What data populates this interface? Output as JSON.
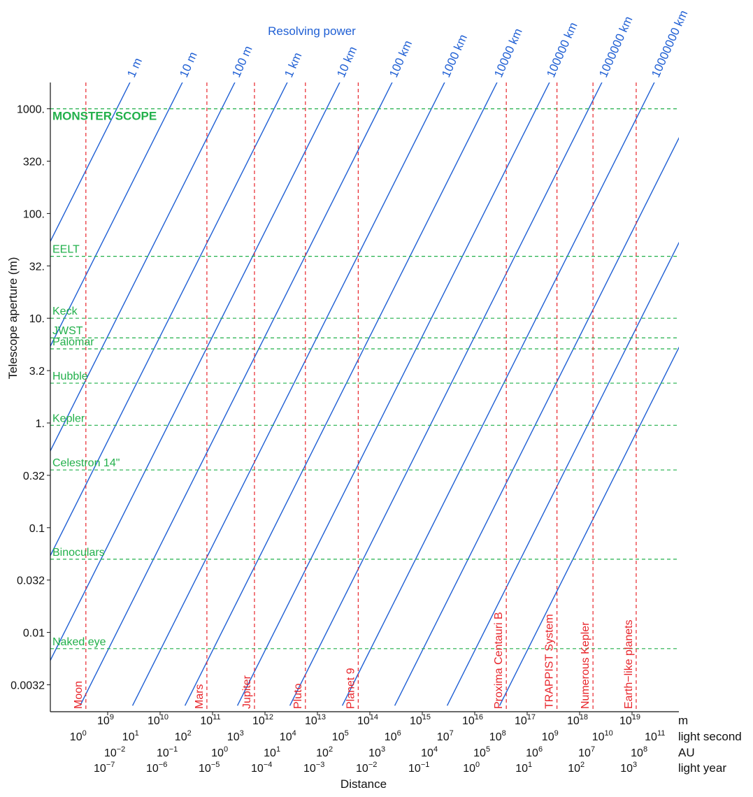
{
  "chart_data": {
    "type": "line",
    "title": "Resolving power",
    "xlabel": "Distance",
    "ylabel": "Telescope aperture (m)",
    "x_scale": "log",
    "y_scale": "log",
    "xlim_m": [
      300000000.0,
      1e+20
    ],
    "ylim_m": [
      0.002,
      2000
    ],
    "y_ticks": [
      {
        "value": 1000,
        "label": "1000."
      },
      {
        "value": 316.2,
        "label": "320."
      },
      {
        "value": 100,
        "label": "100."
      },
      {
        "value": 31.62,
        "label": "32."
      },
      {
        "value": 10,
        "label": "10."
      },
      {
        "value": 3.162,
        "label": "3.2"
      },
      {
        "value": 1,
        "label": "1."
      },
      {
        "value": 0.3162,
        "label": "0.32"
      },
      {
        "value": 0.1,
        "label": "0.1"
      },
      {
        "value": 0.03162,
        "label": "0.032"
      },
      {
        "value": 0.01,
        "label": "0.01"
      },
      {
        "value": 0.003162,
        "label": "0.0032"
      }
    ],
    "x_axis_rows": [
      {
        "name": "m",
        "ticks": [
          {
            "value_m": 1000000000.0,
            "base": "10",
            "exp": "9"
          },
          {
            "value_m": 10000000000.0,
            "base": "10",
            "exp": "10"
          },
          {
            "value_m": 100000000000.0,
            "base": "10",
            "exp": "11"
          },
          {
            "value_m": 1000000000000.0,
            "base": "10",
            "exp": "12"
          },
          {
            "value_m": 10000000000000.0,
            "base": "10",
            "exp": "13"
          },
          {
            "value_m": 100000000000000.0,
            "base": "10",
            "exp": "14"
          },
          {
            "value_m": 1000000000000000.0,
            "base": "10",
            "exp": "15"
          },
          {
            "value_m": 1e+16,
            "base": "10",
            "exp": "16"
          },
          {
            "value_m": 1e+17,
            "base": "10",
            "exp": "17"
          },
          {
            "value_m": 1e+18,
            "base": "10",
            "exp": "18"
          },
          {
            "value_m": 1e+19,
            "base": "10",
            "exp": "19"
          }
        ]
      },
      {
        "name": "light second",
        "ticks": [
          {
            "value_m": 299800000.0,
            "base": "10",
            "exp": "0"
          },
          {
            "value_m": 2998000000.0,
            "base": "10",
            "exp": "1"
          },
          {
            "value_m": 29980000000.0,
            "base": "10",
            "exp": "2"
          },
          {
            "value_m": 299800000000.0,
            "base": "10",
            "exp": "3"
          },
          {
            "value_m": 2998000000000.0,
            "base": "10",
            "exp": "4"
          },
          {
            "value_m": 29980000000000.0,
            "base": "10",
            "exp": "5"
          },
          {
            "value_m": 299800000000000.0,
            "base": "10",
            "exp": "6"
          },
          {
            "value_m": 2998000000000000.0,
            "base": "10",
            "exp": "7"
          },
          {
            "value_m": 2.998e+16,
            "base": "10",
            "exp": "8"
          },
          {
            "value_m": 2.998e+17,
            "base": "10",
            "exp": "9"
          },
          {
            "value_m": 2.998e+18,
            "base": "10",
            "exp": "10"
          },
          {
            "value_m": 2.998e+19,
            "base": "10",
            "exp": "11"
          }
        ]
      },
      {
        "name": "AU",
        "ticks": [
          {
            "value_m": 1496000000.0,
            "base": "10",
            "exp": "−2"
          },
          {
            "value_m": 14960000000.0,
            "base": "10",
            "exp": "−1"
          },
          {
            "value_m": 149600000000.0,
            "base": "10",
            "exp": "0"
          },
          {
            "value_m": 1496000000000.0,
            "base": "10",
            "exp": "1"
          },
          {
            "value_m": 14960000000000.0,
            "base": "10",
            "exp": "2"
          },
          {
            "value_m": 149600000000000.0,
            "base": "10",
            "exp": "3"
          },
          {
            "value_m": 1496000000000000.0,
            "base": "10",
            "exp": "4"
          },
          {
            "value_m": 1.496e+16,
            "base": "10",
            "exp": "5"
          },
          {
            "value_m": 1.496e+17,
            "base": "10",
            "exp": "6"
          },
          {
            "value_m": 1.496e+18,
            "base": "10",
            "exp": "7"
          },
          {
            "value_m": 1.496e+19,
            "base": "10",
            "exp": "8"
          }
        ]
      },
      {
        "name": "light year",
        "ticks": [
          {
            "value_m": 946100000.0,
            "base": "10",
            "exp": "−7"
          },
          {
            "value_m": 9461000000.0,
            "base": "10",
            "exp": "−6"
          },
          {
            "value_m": 94610000000.0,
            "base": "10",
            "exp": "−5"
          },
          {
            "value_m": 946100000000.0,
            "base": "10",
            "exp": "−4"
          },
          {
            "value_m": 9461000000000.0,
            "base": "10",
            "exp": "−3"
          },
          {
            "value_m": 94610000000000.0,
            "base": "10",
            "exp": "−2"
          },
          {
            "value_m": 946100000000000.0,
            "base": "10",
            "exp": "−1"
          },
          {
            "value_m": 9461000000000000.0,
            "base": "10",
            "exp": "0"
          },
          {
            "value_m": 9.461e+16,
            "base": "10",
            "exp": "1"
          },
          {
            "value_m": 9.461e+17,
            "base": "10",
            "exp": "2"
          },
          {
            "value_m": 9.461e+18,
            "base": "10",
            "exp": "3"
          }
        ]
      }
    ],
    "resolving_power_lines": [
      {
        "label": "1 m",
        "resolution_m": 1
      },
      {
        "label": "10 m",
        "resolution_m": 10
      },
      {
        "label": "100 m",
        "resolution_m": 100
      },
      {
        "label": "1 km",
        "resolution_m": 1000
      },
      {
        "label": "10 km",
        "resolution_m": 10000
      },
      {
        "label": "100 km",
        "resolution_m": 100000
      },
      {
        "label": "1000 km",
        "resolution_m": 1000000
      },
      {
        "label": "10000 km",
        "resolution_m": 10000000
      },
      {
        "label": "100000 km",
        "resolution_m": 100000000
      },
      {
        "label": "1000000 km",
        "resolution_m": 1000000000
      },
      {
        "label": "10000000 km",
        "resolution_m": 10000000000
      },
      {
        "label": "",
        "resolution_m": 100000000000
      },
      {
        "label": "",
        "resolution_m": 1000000000000
      },
      {
        "label": "",
        "resolution_m": 10000000000000
      }
    ],
    "telescopes": [
      {
        "name": "MONSTER SCOPE",
        "aperture_m": 1000,
        "bold": true
      },
      {
        "name": "EELT",
        "aperture_m": 39
      },
      {
        "name": "Keck",
        "aperture_m": 10
      },
      {
        "name": "JWST",
        "aperture_m": 6.5
      },
      {
        "name": "Palomar",
        "aperture_m": 5.1
      },
      {
        "name": "Hubble",
        "aperture_m": 2.4
      },
      {
        "name": "Kepler",
        "aperture_m": 0.95
      },
      {
        "name": "Celestron 14\"",
        "aperture_m": 0.356
      },
      {
        "name": "Binoculars",
        "aperture_m": 0.05
      },
      {
        "name": "Naked eye",
        "aperture_m": 0.007
      }
    ],
    "targets": [
      {
        "name": "Moon",
        "distance_m": 384000000.0
      },
      {
        "name": "Mars",
        "distance_m": 78000000000.0
      },
      {
        "name": "Jupiter",
        "distance_m": 630000000000.0
      },
      {
        "name": "Pluto",
        "distance_m": 5900000000000.0
      },
      {
        "name": "Planet 9",
        "distance_m": 60000000000000.0
      },
      {
        "name": "Proxima Centauri B",
        "distance_m": 4e+16
      },
      {
        "name": "TRAPPIST System",
        "distance_m": 3.7e+17
      },
      {
        "name": "Numerous Kepler",
        "distance_m": 1.8e+18
      },
      {
        "name": "Earth−like planets",
        "distance_m": 1.2e+19
      }
    ],
    "grid": false,
    "colors": {
      "resolving_lines": "#1f5fd4",
      "telescopes": "#22b04b",
      "targets": "#e8242a",
      "axis": "#111111"
    }
  }
}
